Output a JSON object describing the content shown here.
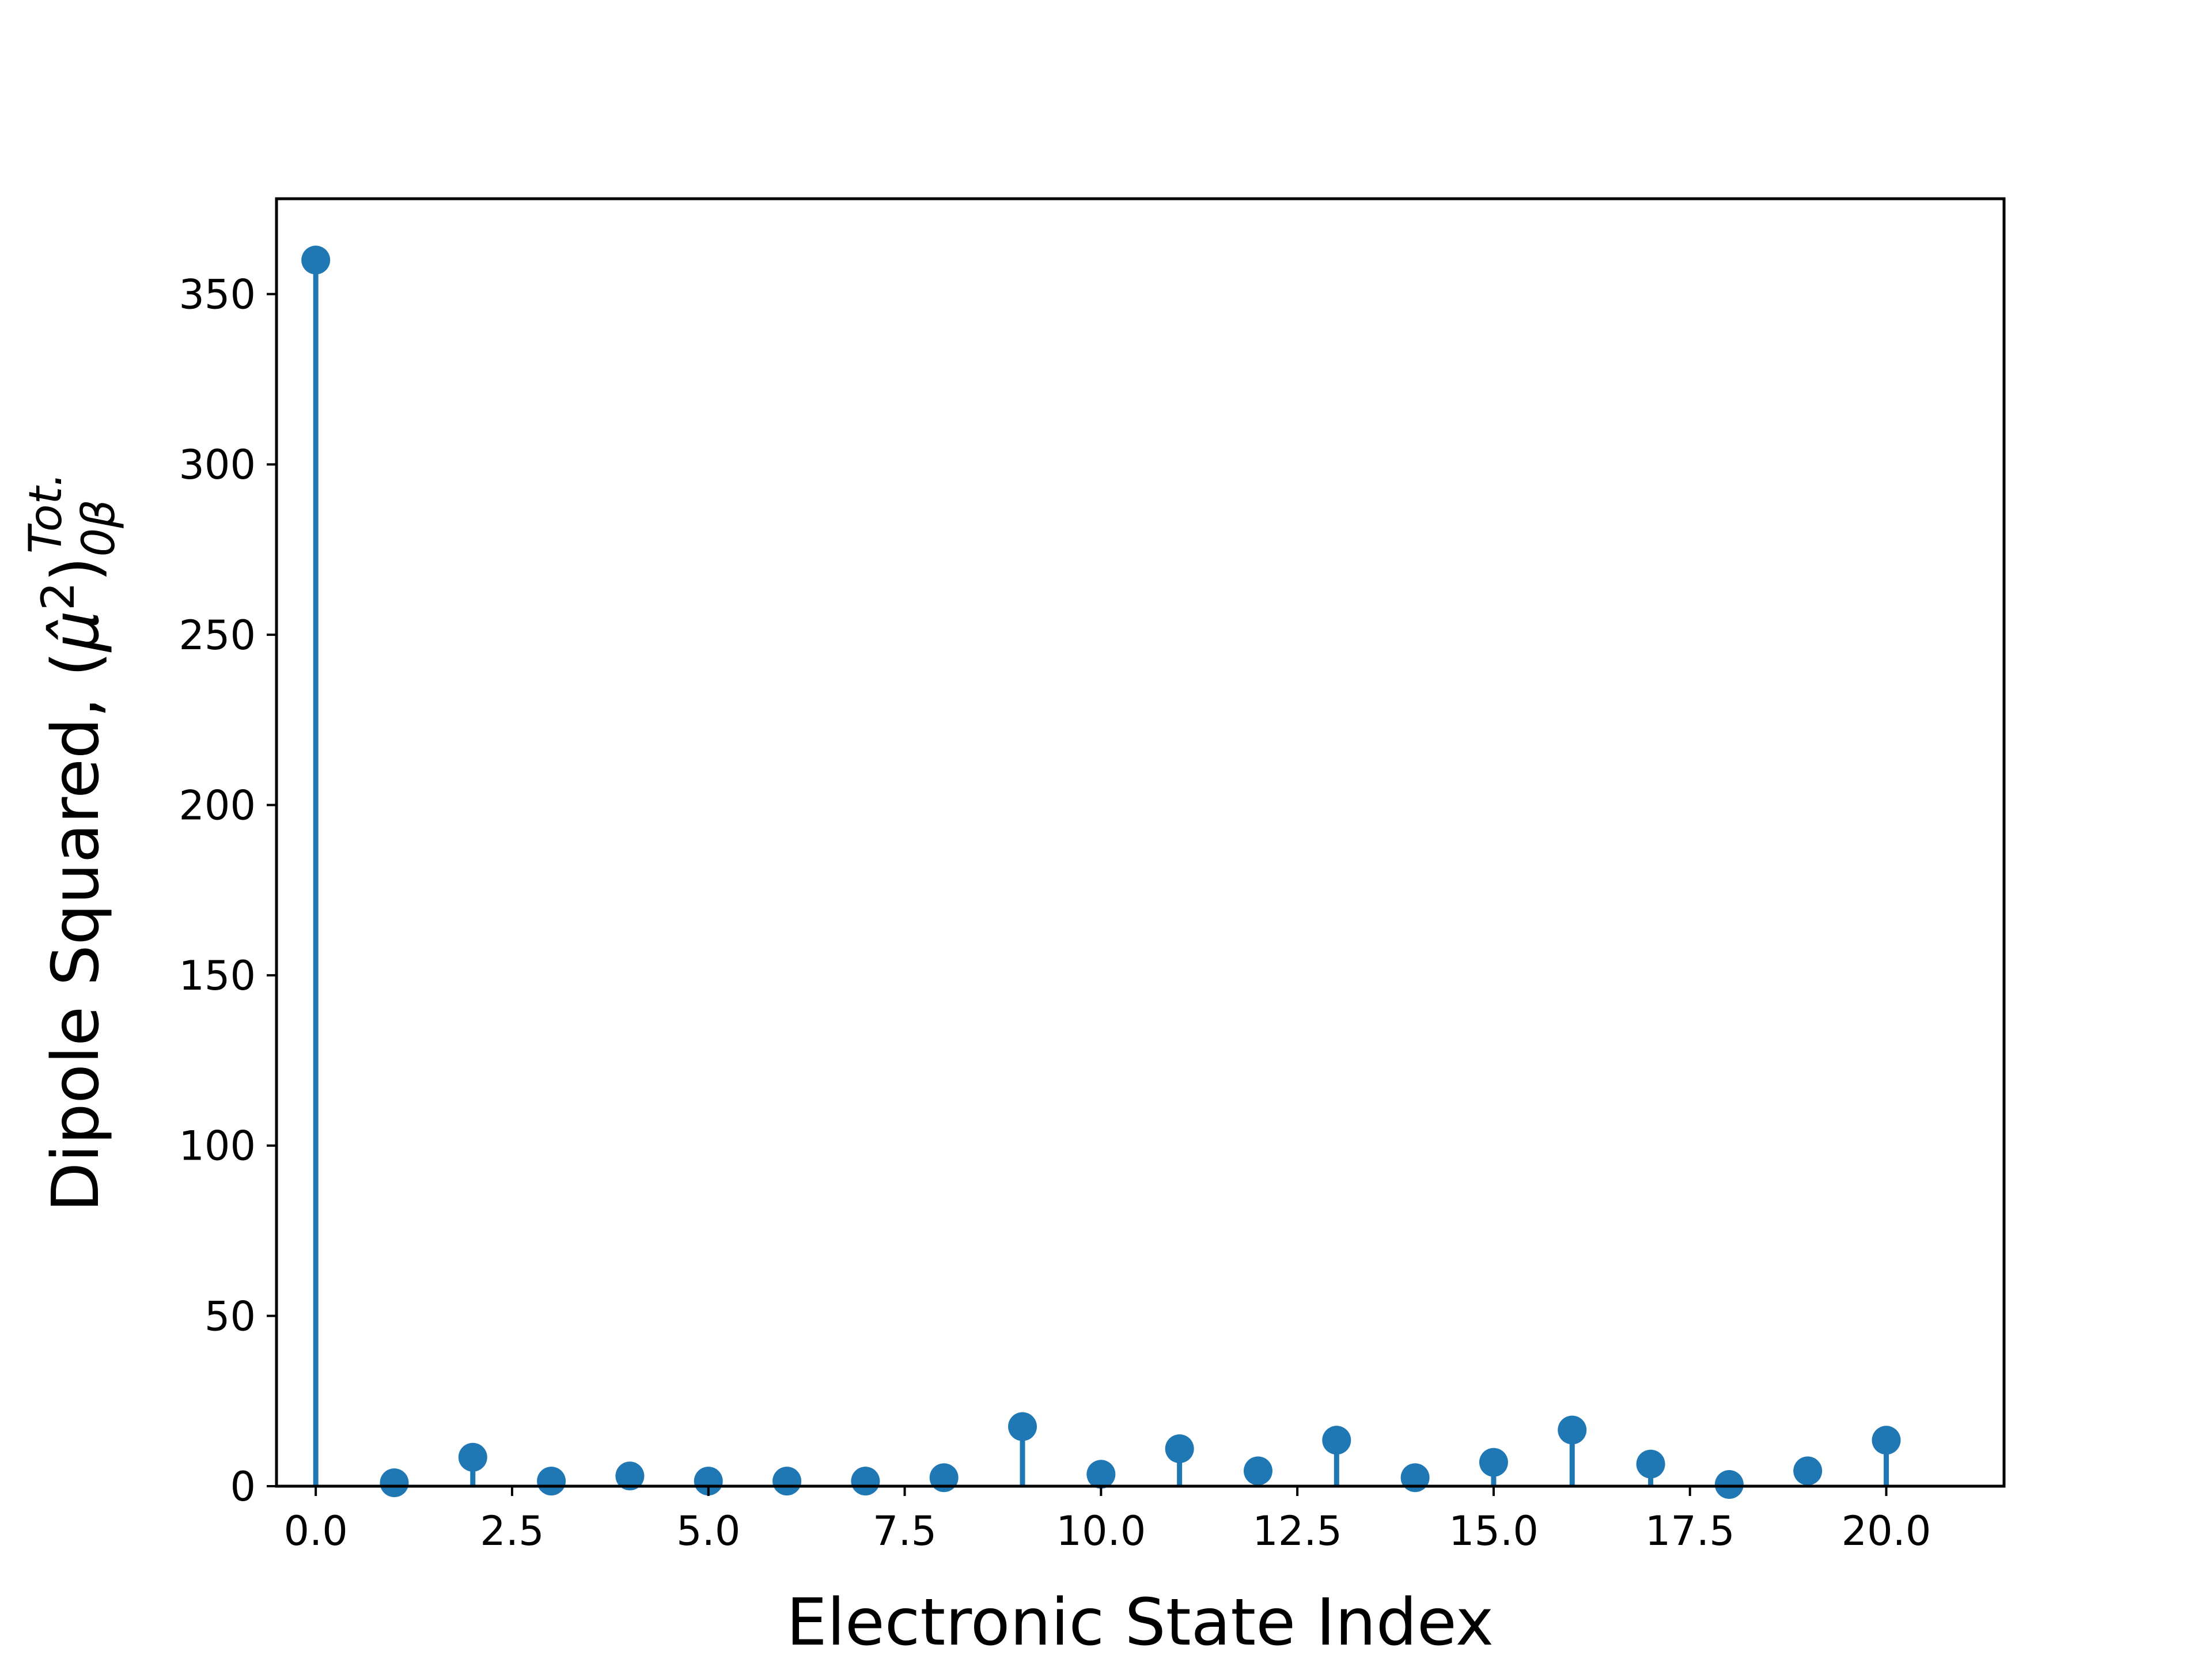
{
  "chart_data": {
    "type": "stem",
    "x": [
      0,
      1,
      2,
      3,
      4,
      5,
      6,
      7,
      8,
      9,
      10,
      11,
      12,
      13,
      14,
      15,
      16,
      17,
      18,
      19,
      20
    ],
    "values": [
      360,
      1,
      8.5,
      1.5,
      3,
      1.5,
      1.5,
      1.5,
      2.5,
      17.5,
      3.5,
      11,
      4.5,
      13.5,
      2.5,
      7,
      16.5,
      6.5,
      0.5,
      4.5,
      13.5
    ],
    "xlabel": "Electronic State Index",
    "ylabel": "Dipole Squared, ",
    "ylabel_math": {
      "open": "(",
      "symbol": "μ̂",
      "power": "2",
      "close": ")",
      "subscript": "0β",
      "superscript": "Tot."
    },
    "xlim": [
      -0.5,
      21.5
    ],
    "ylim": [
      0,
      378
    ],
    "xticks": [
      "0.0",
      "2.5",
      "5.0",
      "7.5",
      "10.0",
      "12.5",
      "15.0",
      "17.5",
      "20.0"
    ],
    "yticks": [
      "0",
      "50",
      "100",
      "150",
      "200",
      "250",
      "300",
      "350"
    ],
    "grid": false,
    "color": "#1f77b4"
  }
}
